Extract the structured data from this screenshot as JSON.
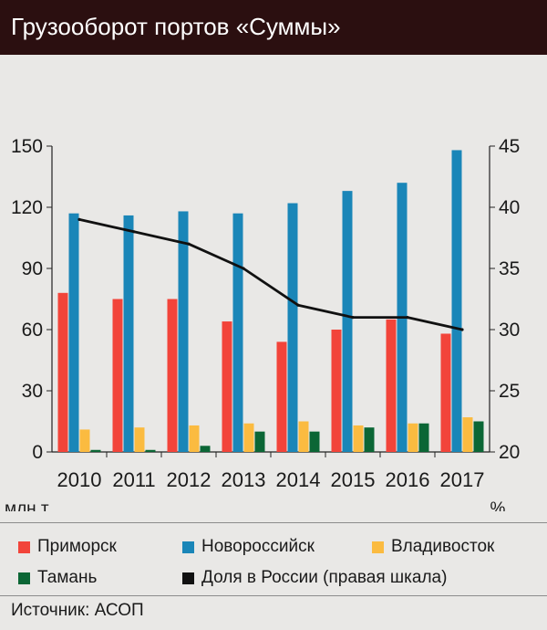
{
  "header": {
    "title": "Грузооборот портов «Суммы»"
  },
  "chart_data": {
    "type": "bar",
    "categories": [
      "2010",
      "2011",
      "2012",
      "2013",
      "2014",
      "2015",
      "2016",
      "2017"
    ],
    "series": [
      {
        "name": "Приморск",
        "axis": "left",
        "color": "#f2443a",
        "values": [
          78,
          75,
          75,
          64,
          54,
          60,
          65,
          58
        ]
      },
      {
        "name": "Новороссийск",
        "axis": "left",
        "color": "#1a86b8",
        "values": [
          117,
          116,
          118,
          117,
          122,
          128,
          132,
          148
        ]
      },
      {
        "name": "Владивосток",
        "axis": "left",
        "color": "#fbbb40",
        "values": [
          11,
          12,
          13,
          14,
          15,
          13,
          14,
          17
        ]
      },
      {
        "name": "Тамань",
        "axis": "left",
        "color": "#0b6635",
        "values": [
          1,
          1,
          3,
          10,
          10,
          12,
          14,
          15
        ]
      }
    ],
    "line_series": {
      "name": "Доля в России (правая шкала)",
      "axis": "right",
      "color": "#111111",
      "values": [
        39,
        38,
        37,
        35,
        32,
        31,
        31,
        30
      ]
    },
    "y_left": {
      "ylim": [
        0,
        150
      ],
      "ticks": [
        0,
        30,
        60,
        90,
        120,
        150
      ],
      "unit": "млн т"
    },
    "y_right": {
      "ylim": [
        20,
        45
      ],
      "ticks": [
        20,
        25,
        30,
        35,
        40,
        45
      ],
      "unit": "%"
    },
    "grid": false
  },
  "legend": [
    {
      "label": "Приморск",
      "color": "#f2443a"
    },
    {
      "label": "Новороссийск",
      "color": "#1a86b8"
    },
    {
      "label": "Владивосток",
      "color": "#fbbb40"
    },
    {
      "label": "Тамань",
      "color": "#0b6635"
    },
    {
      "label": "Доля в России (правая шкала)",
      "color": "#111111"
    }
  ],
  "source": "Источник: АСОП"
}
